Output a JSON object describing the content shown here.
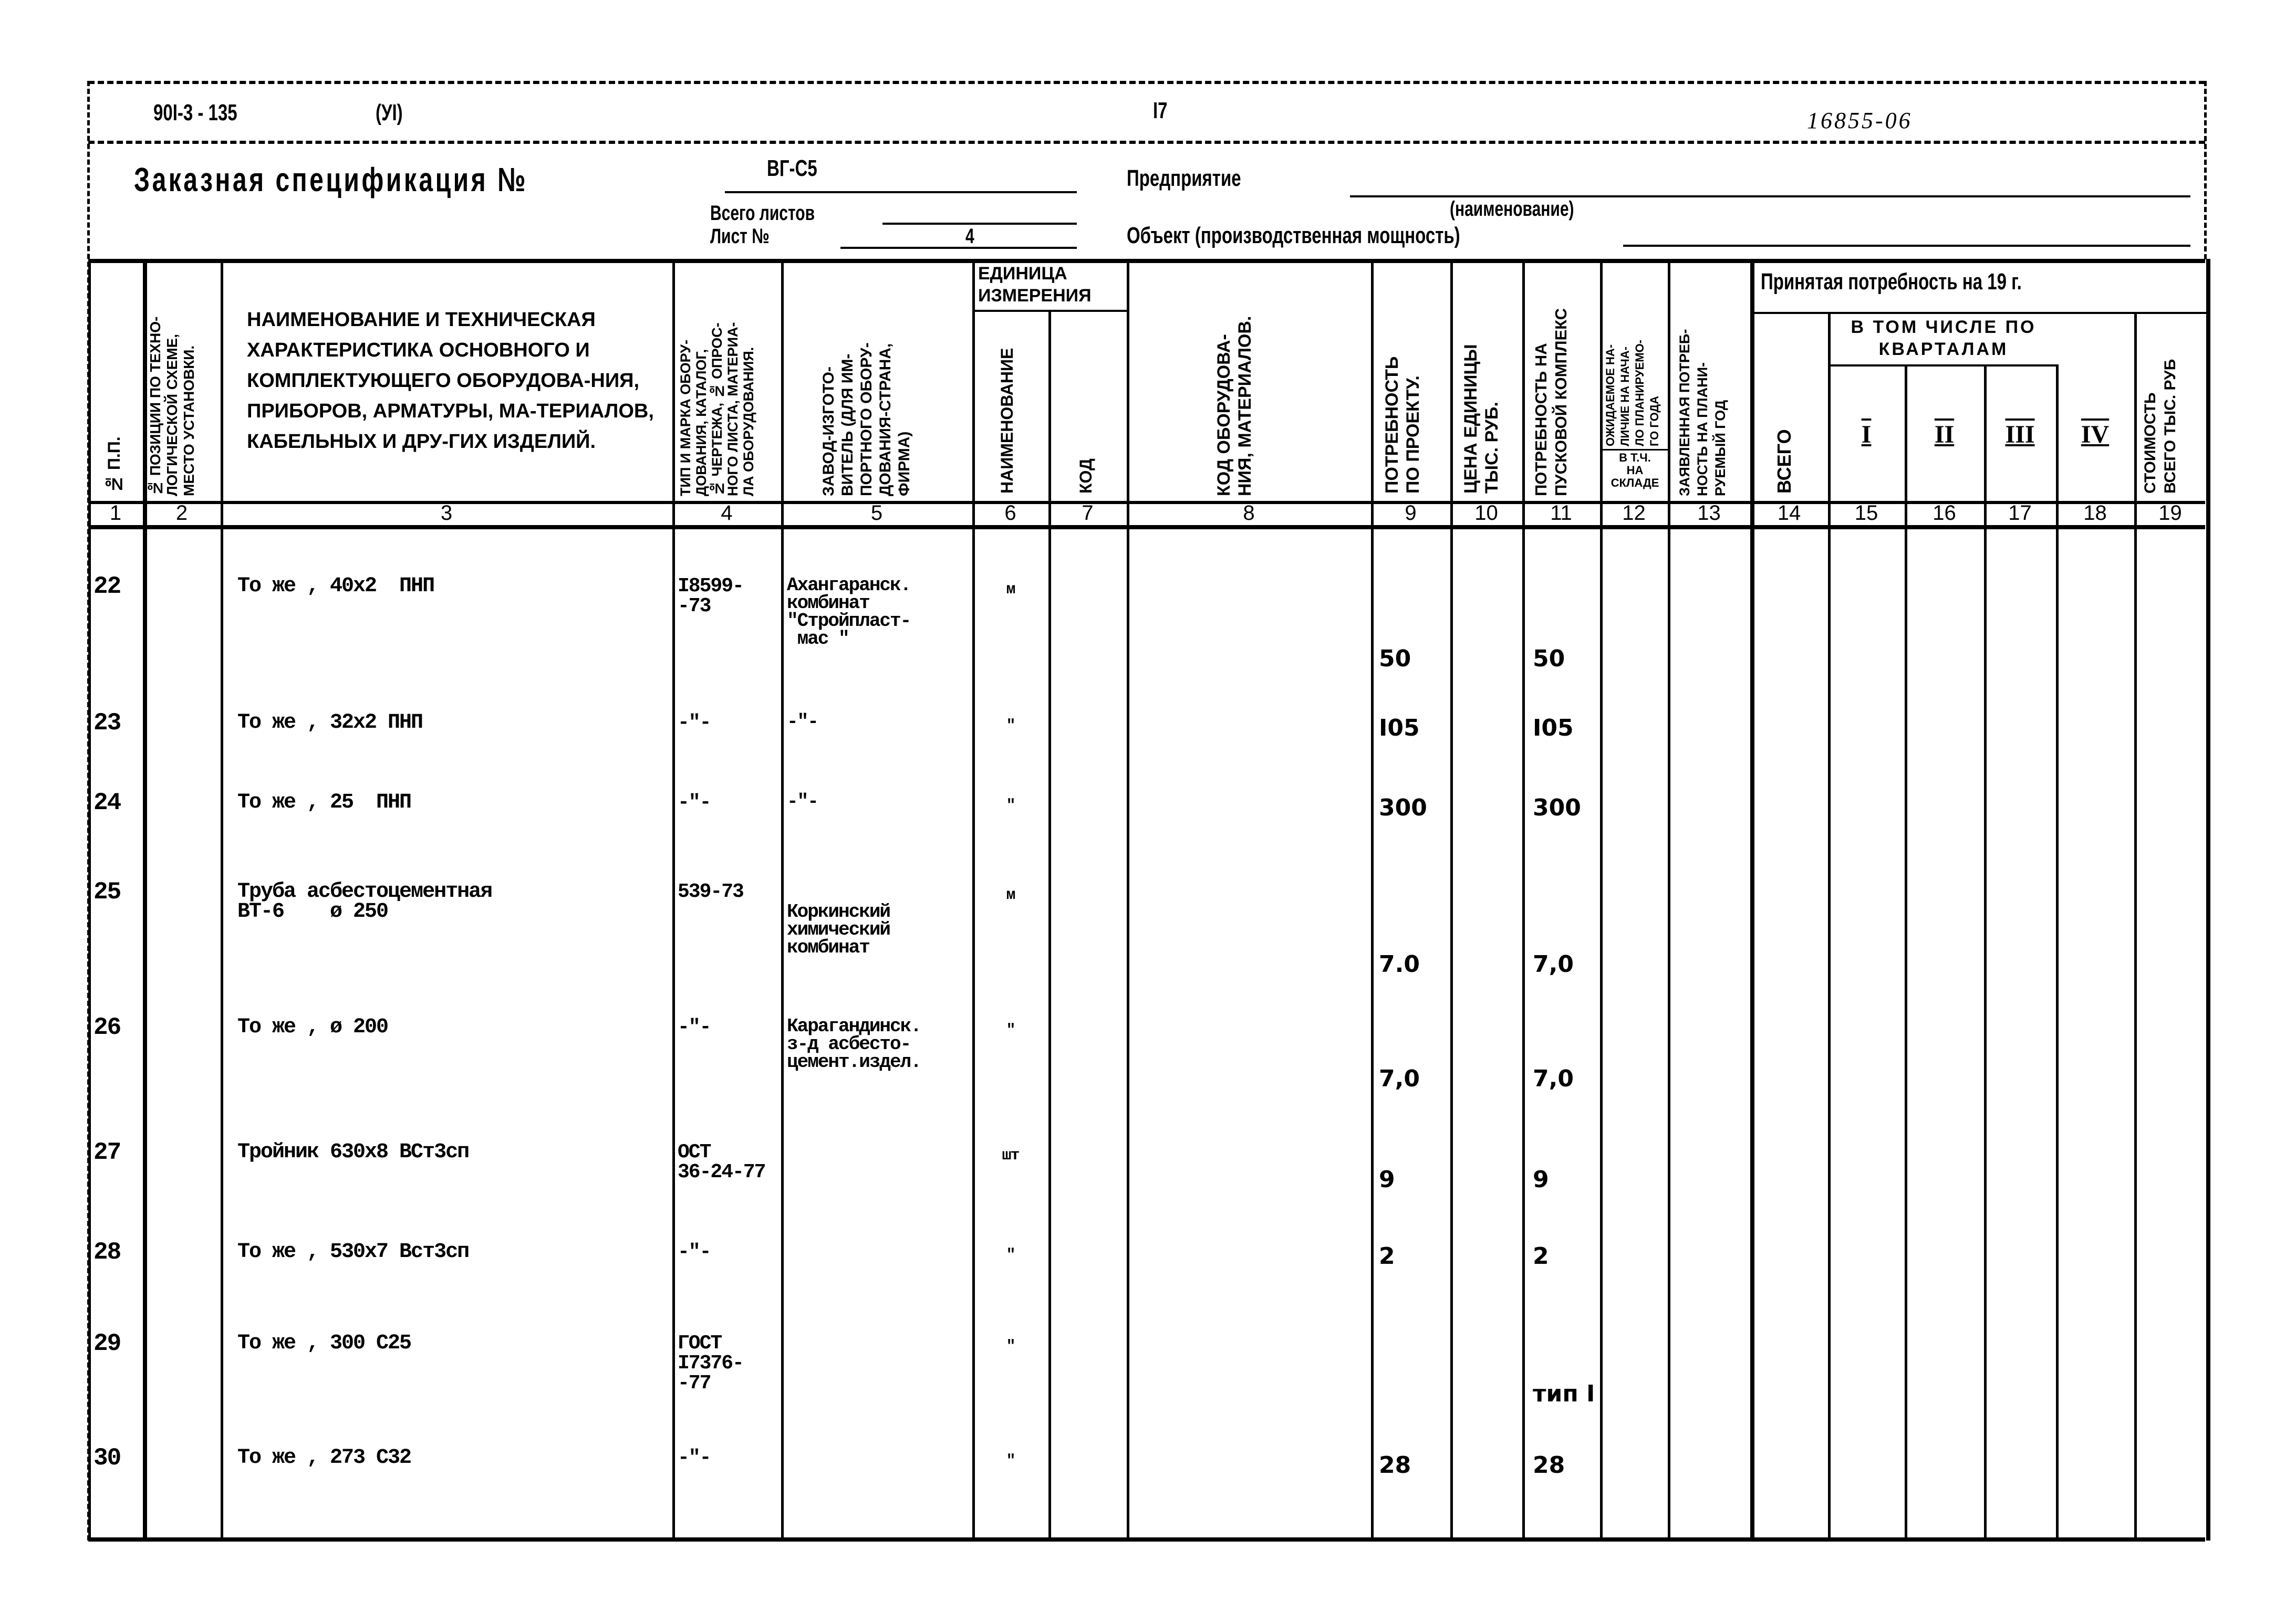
{
  "top_line": {
    "doc_code": "90I-3 - 135",
    "part": "(УI)",
    "page": "I7",
    "inventory": "16855-06"
  },
  "header": {
    "title": "Заказная спецификация №",
    "spec_no": "ВГ-С5",
    "enterprise_label": "Предприятие",
    "name_hint": "(наименование)",
    "sheets_total_label": "Всего листов",
    "sheet_label": "Лист №",
    "sheet_no": "4",
    "object_label": "Объект (производственная мощность)"
  },
  "columns": {
    "c1": "№ п.п.",
    "c2": "№ позиции по техно-\nлогической схеме,\nместо установки.",
    "c3": "Наименование и техническая характеристика основного и комплектующего оборудова-ния, приборов, арматуры, ма-териалов, кабельных и дру-гих изделий.",
    "c4": "Тип и марка обору-\nдования, каталог,\n№ чертежа, № опрос-\nного листа, материа-\nла оборудования.",
    "c5": "Завод-изгото-\nвитель (для им-\nпортного обору-\nдования-страна,\nфирма)",
    "unit_group": "Единица измерения",
    "c6": "Наименование",
    "c7": "Код",
    "c8": "Код оборудова-\nния, материалов.",
    "c9": "Потребность\nпо проекту.",
    "c10": "Цена единицы\nтыс. руб.",
    "c11": "Потребность на\nпусковой комплекс",
    "c12_top": "Ожидаемое на-\nличие на нача-\nло планируемо-\nго года",
    "c12_bottom": "в т.ч.\nна\nскладе",
    "c13": "Заявленная потреб-\nность на плани-\nруемый год",
    "accepted_label": "Принятая потребность на 19   г.",
    "c14": "Всего",
    "quarters_label": "в том числе по кварталам",
    "c15": "I",
    "c16": "II",
    "c17": "III",
    "c18": "IV",
    "c19": "Стоимость\nвсего тыс. руб"
  },
  "column_numbers": [
    "1",
    "2",
    "3",
    "4",
    "5",
    "6",
    "7",
    "8",
    "9",
    "10",
    "11",
    "12",
    "13",
    "14",
    "15",
    "16",
    "17",
    "18",
    "19"
  ],
  "rows": [
    {
      "no": "22",
      "name": "То же , 40х2  ПНП",
      "type": "I8599-\n-73",
      "maker": "Ахангаранск.\nкомбинат\n\"Стройпласт-\n мас \"",
      "unit": "м",
      "need": "50",
      "launch": "50"
    },
    {
      "no": "23",
      "name": "То же , 32х2 ПНП",
      "type": "-\"-",
      "maker": "-\"-",
      "unit": "\"",
      "need": "I05",
      "launch": "I05"
    },
    {
      "no": "24",
      "name": "То же , 25  ПНП",
      "type": "-\"-",
      "maker": "-\"-",
      "unit": "\"",
      "need": "300",
      "launch": "300"
    },
    {
      "no": "25",
      "name": "Труба асбестоцементная\nВТ-6    ø 250",
      "type": "539-73",
      "maker": "Коркинский\nхимический\nкомбинат",
      "unit": "м",
      "need": "7.0",
      "launch": "7,0"
    },
    {
      "no": "26",
      "name": "То же , ø 200",
      "type": "-\"-",
      "maker": "Карагандинск.\nз-д асбесто-\nцемент.издел.",
      "unit": "\"",
      "need": "7,0",
      "launch": "7,0"
    },
    {
      "no": "27",
      "name": "Тройник 630х8 ВСт3сп",
      "type": "ОСТ\n36-24-77",
      "maker": "",
      "unit": "шт",
      "need": "9",
      "launch": "9"
    },
    {
      "no": "28",
      "name": "То же , 530х7 Вст3сп",
      "type": "-\"-",
      "maker": "",
      "unit": "\"",
      "need": "2",
      "launch": "2"
    },
    {
      "no": "29",
      "name": "То же , 300 С25",
      "type": "ГОСТ\nI7376-\n-77",
      "maker": "",
      "unit": "\"",
      "need": "",
      "launch": "тип I"
    },
    {
      "no": "30",
      "name": "То же , 273 С32",
      "type": "-\"-",
      "maker": "",
      "unit": "\"",
      "need": "28",
      "launch": "28"
    }
  ]
}
